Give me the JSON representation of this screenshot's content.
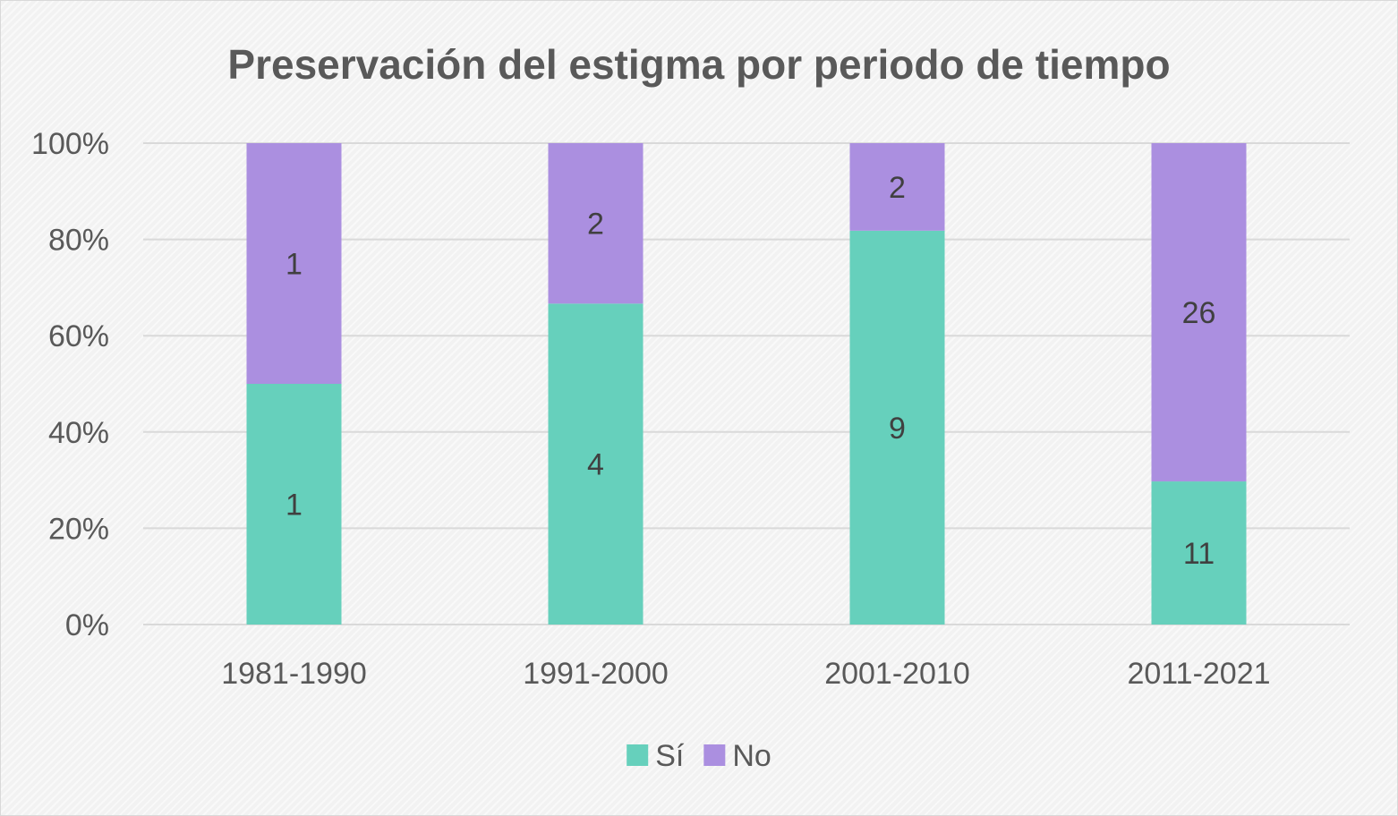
{
  "chart_data": {
    "type": "bar",
    "stacking": "percent",
    "title": "Preservación del estigma por periodo de tiempo",
    "categories": [
      "1981-1990",
      "1991-2000",
      "2001-2010",
      "2011-2021"
    ],
    "series": [
      {
        "name": "Sí",
        "values": [
          1,
          4,
          9,
          11
        ],
        "color": "#66d0bc"
      },
      {
        "name": "No",
        "values": [
          1,
          2,
          2,
          26
        ],
        "color": "#ab8fe0"
      }
    ],
    "y_ticks": [
      "0%",
      "20%",
      "40%",
      "60%",
      "80%",
      "100%"
    ],
    "ylim": [
      0,
      100
    ],
    "grid": true,
    "legend_position": "bottom",
    "data_labels": true
  }
}
